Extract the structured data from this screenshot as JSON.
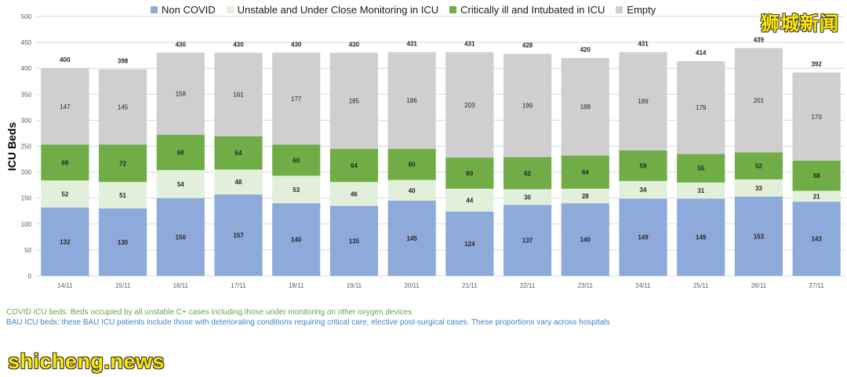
{
  "chart_data": {
    "type": "stacked_bar",
    "ylabel": "ICU Beds",
    "ylim": [
      0,
      500
    ],
    "yticks": [
      0,
      50,
      100,
      150,
      200,
      250,
      300,
      350,
      400,
      450,
      500
    ],
    "categories": [
      "14/11",
      "15/11",
      "16/11",
      "17/11",
      "18/11",
      "19/11",
      "20/11",
      "21/11",
      "22/11",
      "23/11",
      "24/11",
      "25/11",
      "26/11",
      "27/11"
    ],
    "series": [
      {
        "name": "Non COVID",
        "color": "#8eaadb",
        "values": [
          132,
          130,
          150,
          157,
          140,
          135,
          145,
          124,
          137,
          140,
          149,
          149,
          153,
          143
        ]
      },
      {
        "name": "Unstable and Under Close Monitoring in ICU",
        "color": "#e2efda",
        "values": [
          52,
          51,
          54,
          48,
          53,
          46,
          40,
          44,
          30,
          28,
          34,
          31,
          33,
          21
        ]
      },
      {
        "name": "Critically ill and Intubated in ICU",
        "color": "#70ad47",
        "values": [
          69,
          72,
          68,
          64,
          60,
          64,
          60,
          60,
          62,
          64,
          59,
          55,
          52,
          58
        ]
      },
      {
        "name": "Empty",
        "color": "#d0cece",
        "values": [
          147,
          145,
          158,
          161,
          177,
          185,
          186,
          203,
          199,
          188,
          189,
          179,
          201,
          170
        ]
      }
    ],
    "totals": [
      400,
      398,
      430,
      430,
      430,
      430,
      431,
      431,
      428,
      420,
      431,
      414,
      439,
      392
    ],
    "grid": true
  },
  "notes": {
    "covid": "COVID ICU beds: Beds occupied by all unstable C+ cases including those under monitoring on other oxygen devices",
    "bau": "BAU ICU beds: these BAU ICU patients include those with deteriorating conditions requiring critical care, elective post-surgical cases. These proportions vary across hospitals"
  },
  "watermark": {
    "chinese": "狮城新闻",
    "site": "shicheng.news"
  }
}
